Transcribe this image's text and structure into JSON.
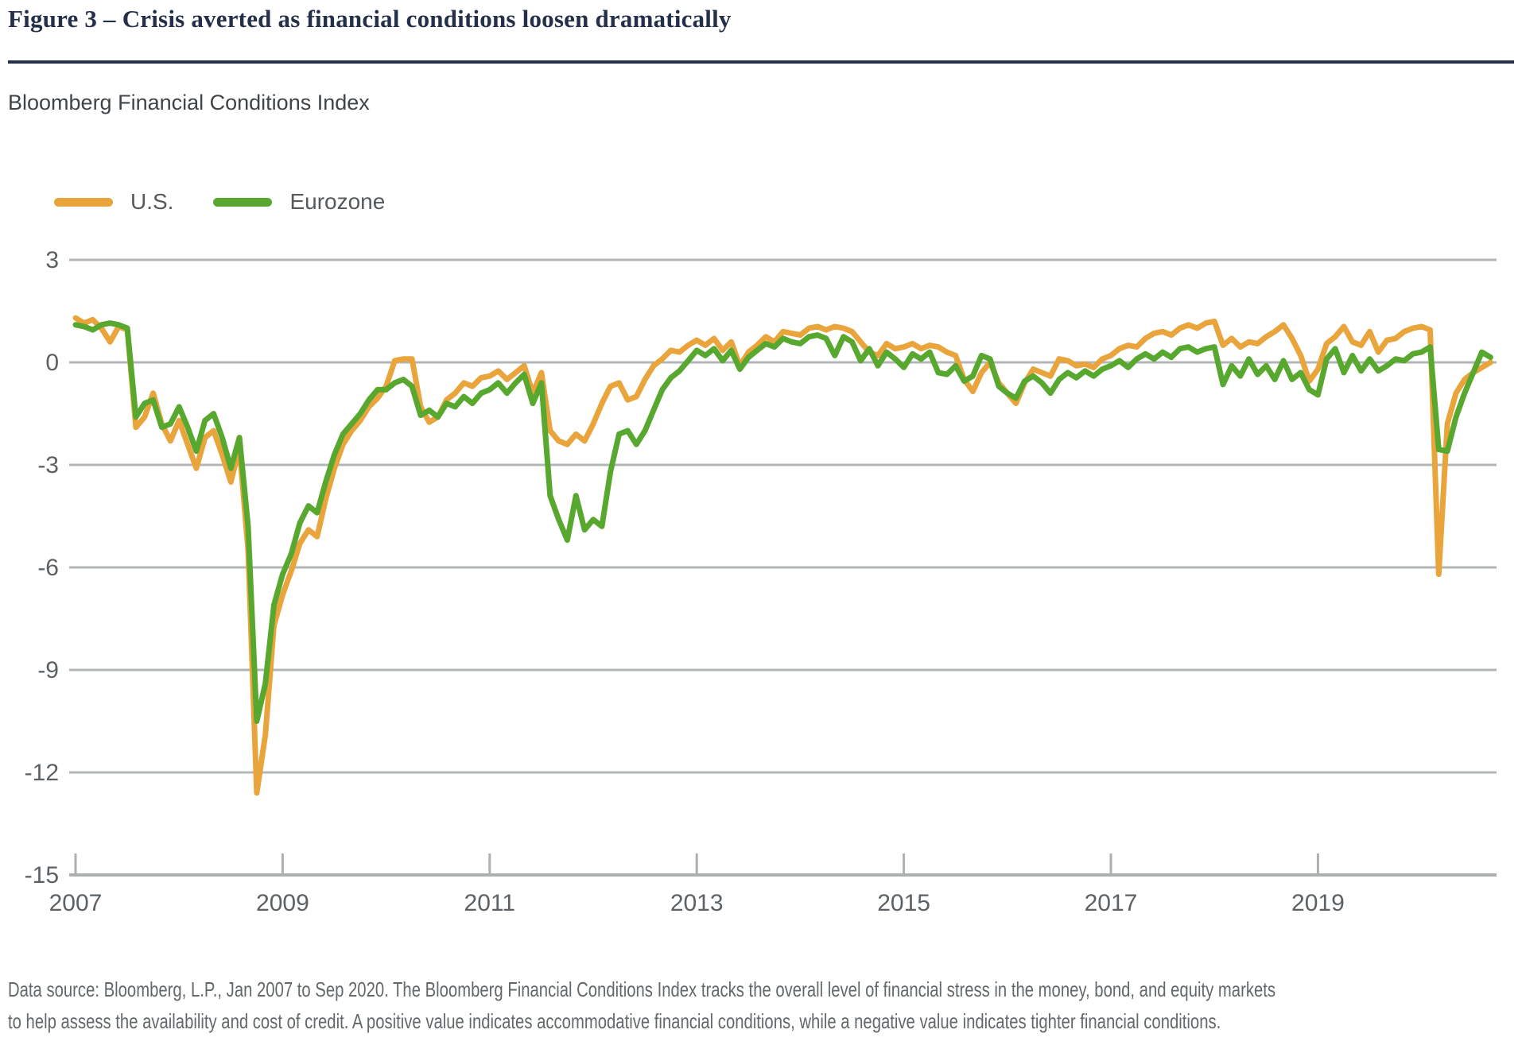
{
  "header": {
    "title": "Figure 3 – Crisis averted as financial conditions loosen dramatically",
    "subtitle": "Bloomberg Financial Conditions Index"
  },
  "legend": [
    {
      "label": "U.S.",
      "color": "#e9a43c"
    },
    {
      "label": "Eurozone",
      "color": "#58a830"
    }
  ],
  "footer": {
    "line1": "Data source: Bloomberg, L.P., Jan 2007 to Sep 2020. The Bloomberg Financial Conditions Index tracks the overall level of financial stress in the money, bond, and equity markets",
    "line2": "to help assess the availability and cost of credit. A positive value indicates accommodative financial conditions, while a negative value indicates tighter financial conditions."
  },
  "chart_data": {
    "type": "line",
    "title": "Bloomberg Financial Conditions Index",
    "xlabel": "",
    "ylabel": "",
    "x_start_year": 2007.0,
    "x_step_months": 1,
    "x_range_label": "Jan 2007 to Sep 2020",
    "ylim": [
      -15,
      3
    ],
    "y_ticks": [
      3,
      0,
      -3,
      -6,
      -9,
      -12,
      -15
    ],
    "x_ticks": [
      2007,
      2009,
      2011,
      2013,
      2015,
      2017,
      2019
    ],
    "grid": "horizontal",
    "legend_position": "top-left",
    "colors": {
      "grid": "#b3b6b7",
      "axis": "#acb0b1",
      "tick_label": "#5b6165"
    },
    "series": [
      {
        "name": "U.S.",
        "color": "#e9a43c",
        "values": [
          1.3,
          1.15,
          1.25,
          1.0,
          0.6,
          1.05,
          0.95,
          -1.9,
          -1.6,
          -0.9,
          -1.8,
          -2.3,
          -1.7,
          -2.4,
          -3.1,
          -2.2,
          -2.0,
          -2.7,
          -3.5,
          -2.5,
          -5.5,
          -12.6,
          -10.9,
          -7.7,
          -6.8,
          -6.1,
          -5.3,
          -4.9,
          -5.1,
          -4.0,
          -3.1,
          -2.4,
          -2.0,
          -1.7,
          -1.3,
          -1.05,
          -0.7,
          0.05,
          0.1,
          0.1,
          -1.3,
          -1.75,
          -1.6,
          -1.1,
          -0.9,
          -0.6,
          -0.7,
          -0.45,
          -0.4,
          -0.25,
          -0.5,
          -0.3,
          -0.1,
          -0.9,
          -0.3,
          -2.0,
          -2.3,
          -2.4,
          -2.1,
          -2.3,
          -1.8,
          -1.2,
          -0.7,
          -0.6,
          -1.1,
          -1.0,
          -0.5,
          -0.1,
          0.1,
          0.35,
          0.3,
          0.5,
          0.65,
          0.5,
          0.7,
          0.35,
          0.6,
          -0.1,
          0.3,
          0.5,
          0.75,
          0.6,
          0.9,
          0.85,
          0.8,
          1.0,
          1.05,
          0.95,
          1.05,
          1.0,
          0.9,
          0.6,
          0.3,
          0.2,
          0.55,
          0.4,
          0.45,
          0.55,
          0.4,
          0.5,
          0.45,
          0.3,
          0.2,
          -0.5,
          -0.85,
          -0.3,
          0.0,
          -0.6,
          -0.9,
          -1.2,
          -0.6,
          -0.2,
          -0.3,
          -0.4,
          0.1,
          0.05,
          -0.1,
          -0.05,
          -0.15,
          0.1,
          0.2,
          0.4,
          0.5,
          0.45,
          0.7,
          0.85,
          0.9,
          0.8,
          1.0,
          1.1,
          1.0,
          1.15,
          1.2,
          0.5,
          0.7,
          0.45,
          0.6,
          0.55,
          0.75,
          0.9,
          1.1,
          0.7,
          0.2,
          -0.55,
          -0.2,
          0.55,
          0.75,
          1.05,
          0.6,
          0.5,
          0.9,
          0.3,
          0.65,
          0.7,
          0.9,
          1.0,
          1.05,
          0.95,
          -6.2,
          -1.8,
          -0.9,
          -0.5,
          -0.3,
          -0.15,
          0.0
        ]
      },
      {
        "name": "Eurozone",
        "color": "#58a830",
        "values": [
          1.1,
          1.05,
          0.95,
          1.1,
          1.15,
          1.1,
          1.0,
          -1.6,
          -1.2,
          -1.1,
          -1.9,
          -1.8,
          -1.3,
          -1.9,
          -2.6,
          -1.7,
          -1.5,
          -2.2,
          -3.1,
          -2.2,
          -4.8,
          -10.5,
          -9.4,
          -7.1,
          -6.2,
          -5.6,
          -4.7,
          -4.2,
          -4.4,
          -3.5,
          -2.7,
          -2.1,
          -1.8,
          -1.5,
          -1.1,
          -0.8,
          -0.8,
          -0.6,
          -0.5,
          -0.7,
          -1.55,
          -1.4,
          -1.6,
          -1.2,
          -1.3,
          -1.0,
          -1.2,
          -0.9,
          -0.8,
          -0.6,
          -0.9,
          -0.6,
          -0.35,
          -1.2,
          -0.6,
          -3.9,
          -4.6,
          -5.2,
          -3.9,
          -4.9,
          -4.6,
          -4.8,
          -3.2,
          -2.1,
          -2.0,
          -2.4,
          -2.0,
          -1.4,
          -0.8,
          -0.45,
          -0.25,
          0.05,
          0.35,
          0.2,
          0.4,
          0.05,
          0.35,
          -0.2,
          0.15,
          0.35,
          0.55,
          0.45,
          0.7,
          0.6,
          0.55,
          0.75,
          0.8,
          0.7,
          0.2,
          0.75,
          0.6,
          0.05,
          0.4,
          -0.1,
          0.3,
          0.1,
          -0.15,
          0.25,
          0.1,
          0.3,
          -0.3,
          -0.35,
          -0.1,
          -0.55,
          -0.4,
          0.2,
          0.1,
          -0.7,
          -0.9,
          -1.05,
          -0.55,
          -0.4,
          -0.6,
          -0.9,
          -0.5,
          -0.3,
          -0.45,
          -0.25,
          -0.4,
          -0.2,
          -0.1,
          0.05,
          -0.15,
          0.1,
          0.25,
          0.1,
          0.3,
          0.15,
          0.4,
          0.45,
          0.3,
          0.4,
          0.45,
          -0.65,
          -0.1,
          -0.4,
          0.1,
          -0.35,
          -0.1,
          -0.5,
          0.05,
          -0.5,
          -0.3,
          -0.8,
          -0.95,
          0.1,
          0.4,
          -0.3,
          0.2,
          -0.25,
          0.1,
          -0.25,
          -0.1,
          0.1,
          0.05,
          0.25,
          0.3,
          0.45,
          -2.55,
          -2.6,
          -1.6,
          -0.9,
          -0.3,
          0.3,
          0.15
        ]
      }
    ]
  }
}
